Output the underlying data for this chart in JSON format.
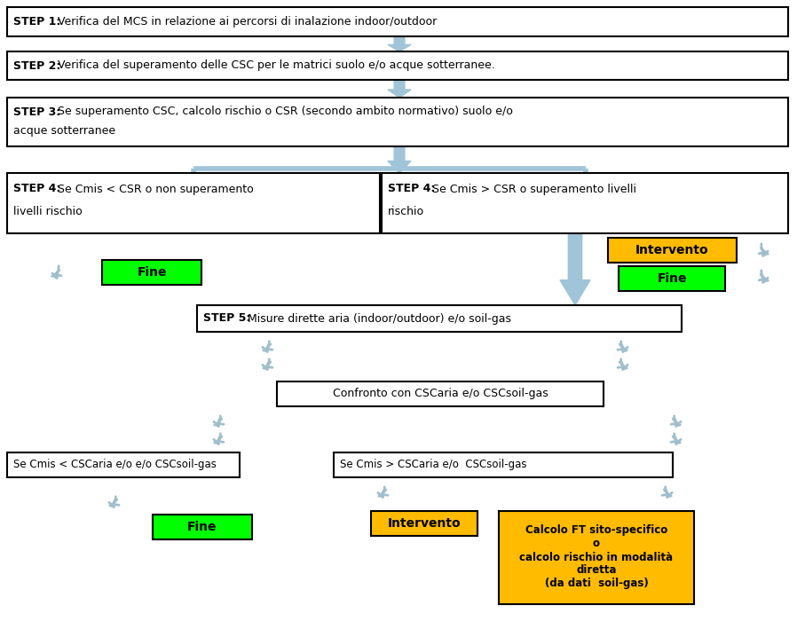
{
  "fig_width": 8.98,
  "fig_height": 7.18,
  "bg_color": "#ffffff",
  "box_fill_green": "#00ff00",
  "box_fill_yellow": "#ffbb00",
  "arrow_blue": "#a0c4d8",
  "recycle_color": "#a0bfcc",
  "step1_bold": "STEP 1:",
  "step1_rest": " Verifica del MCS in relazione ai percorsi di inalazione indoor/outdoor",
  "step2_bold": "STEP 2:",
  "step2_rest": " Verifica del superamento delle CSC per le matrici suolo e/o acque sotterranee.",
  "step3_bold": "STEP 3:",
  "step3_line1": " Se superamento CSC, calcolo rischio o CSR (secondo ambito normativo) suolo e/o",
  "step3_line2": "acque sotterranee",
  "step4a_bold": "STEP 4:",
  "step4a_line1": " Se Cmis < CSR o non superamento",
  "step4a_line2": "livelli rischio",
  "step4b_bold": "STEP 4:",
  "step4b_line1": " Se Cmis > CSR o superamento livelli",
  "step4b_line2": "rischio",
  "step5_bold": "STEP 5:",
  "step5_rest": " Misure dirette aria (indoor/outdoor) e/o soil-gas",
  "confronto_text": "Confronto con CSCaria e/o CSCsoil-gas",
  "cmis_lt_text": "Se Cmis < CSCaria e/o e/o CSCsoil-gas",
  "cmis_gt_text": "Se Cmis > CSCaria e/o  CSCsoil-gas",
  "fine_text": "Fine",
  "intervento_text": "Intervento",
  "calcolo_text": "Calcolo FT sito-specifico\no\ncalcolo rischio in modalità\ndiretta\n(da dati  soil-gas)"
}
